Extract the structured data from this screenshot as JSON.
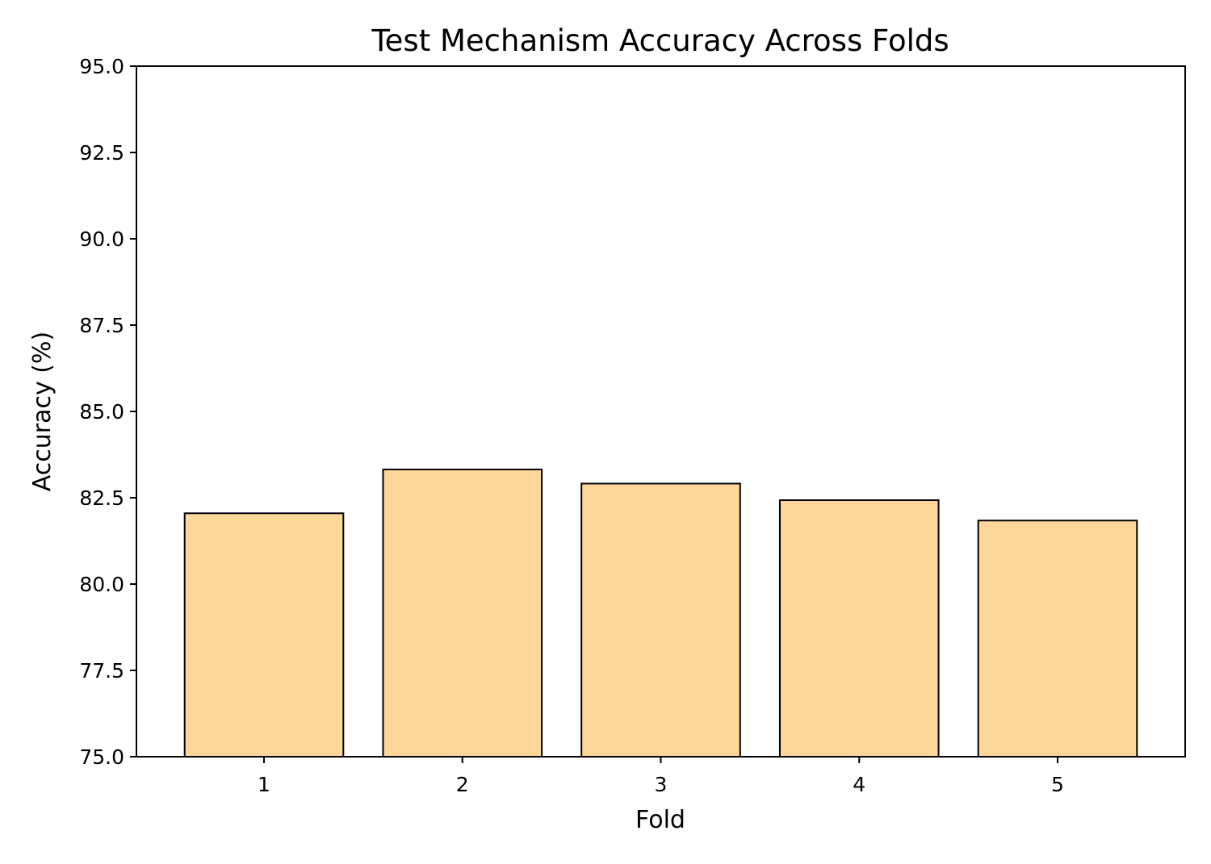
{
  "chart_data": {
    "type": "bar",
    "title": "Test Mechanism Accuracy Across Folds",
    "xlabel": "Fold",
    "ylabel": "Accuracy (%)",
    "categories": [
      "1",
      "2",
      "3",
      "4",
      "5"
    ],
    "values": [
      82.05,
      83.32,
      82.91,
      82.43,
      81.84
    ],
    "ylim": [
      75.0,
      95.0
    ],
    "yticks": [
      "75.0",
      "77.5",
      "80.0",
      "82.5",
      "85.0",
      "87.5",
      "90.0",
      "92.5",
      "95.0"
    ],
    "grid": false,
    "bar_color": "#fdd699",
    "edge_color": "#000000"
  }
}
